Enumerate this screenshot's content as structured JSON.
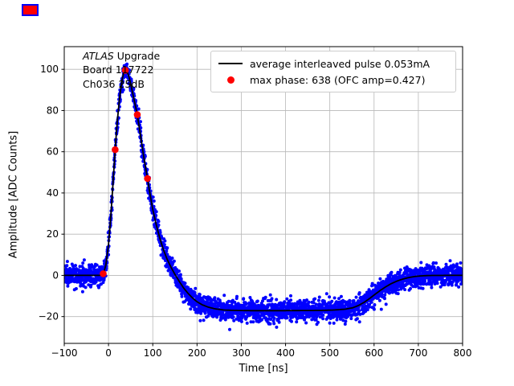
{
  "figure": {
    "background": "#ffffff",
    "corner_marker": {
      "fill": "#ff0000",
      "border": "#0000ff"
    }
  },
  "chart_data": {
    "type": "scatter",
    "title": "",
    "xlabel": "Time [ns]",
    "ylabel": "Amplitude [ADC Counts]",
    "xlim": [
      -100,
      800
    ],
    "ylim": [
      -33,
      111
    ],
    "xticks": [
      -100,
      0,
      100,
      200,
      300,
      400,
      500,
      600,
      700,
      800
    ],
    "yticks": [
      -20,
      0,
      20,
      40,
      60,
      80,
      100
    ],
    "grid": true,
    "grid_color": "#b8b8b8",
    "legend_position": "upper right",
    "annotation": {
      "line1_italic": "ATLAS",
      "line1_rest": "Upgrade",
      "line2": "Board 117722",
      "line3": "Ch036 25dB"
    },
    "legend": [
      {
        "marker": "line",
        "color": "#000000",
        "label": "average interleaved pulse 0.053mA"
      },
      {
        "marker": "dot",
        "color": "#ff0000",
        "label": "max phase: 638 (OFC amp=0.427)"
      }
    ],
    "series": [
      {
        "name": "interleaved-pulse-scatter",
        "type": "scatter",
        "color": "#0000ff",
        "noise_sigma": 2.6,
        "t_start": -100,
        "t_end": 800,
        "t_step": 0.3
      },
      {
        "name": "average-pulse-line",
        "type": "line",
        "color": "#000000",
        "control_points": [
          [
            -100,
            0
          ],
          [
            -22,
            0
          ],
          [
            -15,
            0.2
          ],
          [
            -11,
            1.2
          ],
          [
            -6,
            5
          ],
          [
            0,
            15
          ],
          [
            5,
            28
          ],
          [
            10,
            44
          ],
          [
            15,
            61
          ],
          [
            20,
            75
          ],
          [
            25,
            86
          ],
          [
            30,
            94
          ],
          [
            34,
            98
          ],
          [
            38,
            99.8
          ],
          [
            42,
            99
          ],
          [
            46,
            96.5
          ],
          [
            50,
            93
          ],
          [
            55,
            88
          ],
          [
            60,
            83
          ],
          [
            65,
            78
          ],
          [
            70,
            71
          ],
          [
            75,
            64
          ],
          [
            80,
            57
          ],
          [
            84,
            52
          ],
          [
            88,
            47
          ],
          [
            93,
            40.5
          ],
          [
            100,
            32
          ],
          [
            108,
            24.5
          ],
          [
            116,
            18
          ],
          [
            124,
            12.5
          ],
          [
            132,
            8
          ],
          [
            141,
            4
          ],
          [
            150,
            0.5
          ],
          [
            160,
            -3
          ],
          [
            170,
            -6.2
          ],
          [
            180,
            -8.8
          ],
          [
            190,
            -11
          ],
          [
            200,
            -12.8
          ],
          [
            212,
            -14.3
          ],
          [
            225,
            -15.4
          ],
          [
            240,
            -16.2
          ],
          [
            260,
            -16.8
          ],
          [
            285,
            -17
          ],
          [
            320,
            -17.1
          ],
          [
            360,
            -17.1
          ],
          [
            400,
            -17.1
          ],
          [
            440,
            -17.05
          ],
          [
            480,
            -17
          ],
          [
            510,
            -16.8
          ],
          [
            535,
            -16.4
          ],
          [
            552,
            -15.7
          ],
          [
            565,
            -14.6
          ],
          [
            578,
            -13
          ],
          [
            590,
            -11.2
          ],
          [
            602,
            -9.2
          ],
          [
            614,
            -7.3
          ],
          [
            626,
            -5.6
          ],
          [
            638,
            -4.1
          ],
          [
            650,
            -2.9
          ],
          [
            662,
            -2
          ],
          [
            675,
            -1.2
          ],
          [
            690,
            -0.6
          ],
          [
            705,
            -0.25
          ],
          [
            725,
            -0.05
          ],
          [
            760,
            0
          ],
          [
            800,
            0
          ]
        ]
      },
      {
        "name": "max-phase-samples",
        "type": "points",
        "color": "#ff0000",
        "points": [
          [
            -12,
            0.8
          ],
          [
            15,
            61
          ],
          [
            38,
            99.5
          ],
          [
            65,
            78
          ],
          [
            88,
            47
          ]
        ]
      }
    ]
  }
}
